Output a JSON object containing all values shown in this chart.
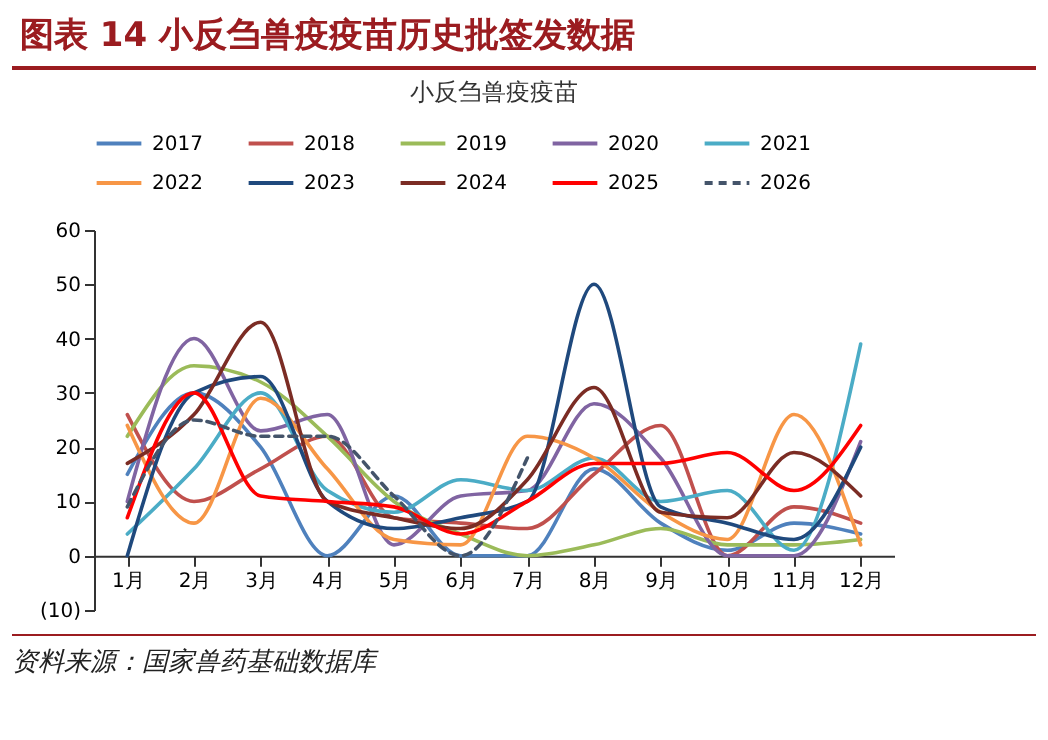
{
  "chart_data": {
    "type": "line",
    "title": "图表 14 小反刍兽疫疫苗历史批签发数据",
    "subtitle": "小反刍兽疫疫苗",
    "categories": [
      "1月",
      "2月",
      "3月",
      "4月",
      "5月",
      "6月",
      "7月",
      "8月",
      "9月",
      "10月",
      "11月",
      "12月"
    ],
    "ylim": [
      -10,
      60
    ],
    "yticks": [
      {
        "value": -10,
        "label": "(10)"
      },
      0,
      10,
      20,
      30,
      40,
      50,
      60
    ],
    "legend": "top",
    "series": [
      {
        "name": "2017",
        "color": "#4f81bd",
        "values": [
          15,
          30,
          20,
          0,
          11,
          0,
          0,
          16,
          6,
          1,
          6,
          4
        ]
      },
      {
        "name": "2018",
        "color": "#c0504d",
        "values": [
          26,
          10,
          16,
          22,
          7,
          6,
          5,
          15,
          24,
          0,
          9,
          6
        ]
      },
      {
        "name": "2019",
        "color": "#9bbb59",
        "values": [
          22,
          35,
          32,
          22,
          10,
          4,
          0,
          2,
          5,
          2,
          2,
          3
        ]
      },
      {
        "name": "2020",
        "color": "#8064a2",
        "values": [
          10,
          40,
          23,
          26,
          2,
          11,
          12,
          28,
          18,
          0,
          0,
          21
        ]
      },
      {
        "name": "2021",
        "color": "#4bacc6",
        "values": [
          4,
          16,
          30,
          12,
          8,
          14,
          12,
          18,
          10,
          12,
          1,
          39
        ]
      },
      {
        "name": "2022",
        "color": "#f79646",
        "values": [
          24,
          6,
          29,
          16,
          3,
          2,
          22,
          18,
          8,
          3,
          26,
          2
        ]
      },
      {
        "name": "2023",
        "color": "#1f497d",
        "values": [
          0,
          30,
          33,
          10,
          5,
          7,
          10,
          50,
          9,
          6,
          3,
          20
        ]
      },
      {
        "name": "2024",
        "color": "#7b2c24",
        "values": [
          17,
          26,
          43,
          10,
          7,
          5,
          14,
          31,
          8,
          7,
          19,
          11
        ]
      },
      {
        "name": "2025",
        "color": "#ff0000",
        "values": [
          7,
          30,
          11,
          10,
          9,
          4,
          10,
          17,
          17,
          19,
          12,
          24
        ]
      },
      {
        "name": "2026",
        "color": "#44546a",
        "line_style": "dashed",
        "values": [
          9,
          25,
          22,
          22,
          11,
          0,
          18,
          null,
          null,
          null,
          null,
          null
        ]
      }
    ],
    "annotations": [
      "资料来源：国家兽药基础数据库"
    ]
  }
}
